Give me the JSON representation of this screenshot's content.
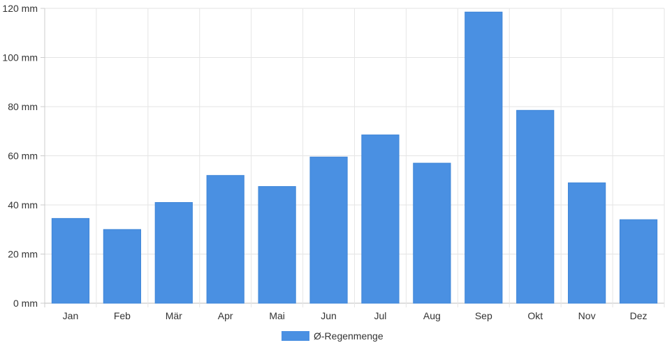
{
  "chart_data": {
    "type": "bar",
    "title": "",
    "xlabel": "",
    "ylabel": "",
    "categories": [
      "Jan",
      "Feb",
      "Mär",
      "Apr",
      "Mai",
      "Jun",
      "Jul",
      "Aug",
      "Sep",
      "Okt",
      "Nov",
      "Dez"
    ],
    "series": [
      {
        "name": "Ø-Regenmenge",
        "color": "#4a90e2",
        "values": [
          34.5,
          30,
          41,
          52,
          47.5,
          59.5,
          68.5,
          57,
          118.5,
          78.5,
          49,
          34
        ]
      }
    ],
    "ylim": [
      0,
      120
    ],
    "yticks": [
      0,
      20,
      40,
      60,
      80,
      100,
      120
    ],
    "ytick_unit": "mm",
    "ytick_labels": [
      "0 mm",
      "20 mm",
      "40 mm",
      "60 mm",
      "80 mm",
      "100 mm",
      "120 mm"
    ],
    "grid": true,
    "legend_position": "bottom-center"
  }
}
